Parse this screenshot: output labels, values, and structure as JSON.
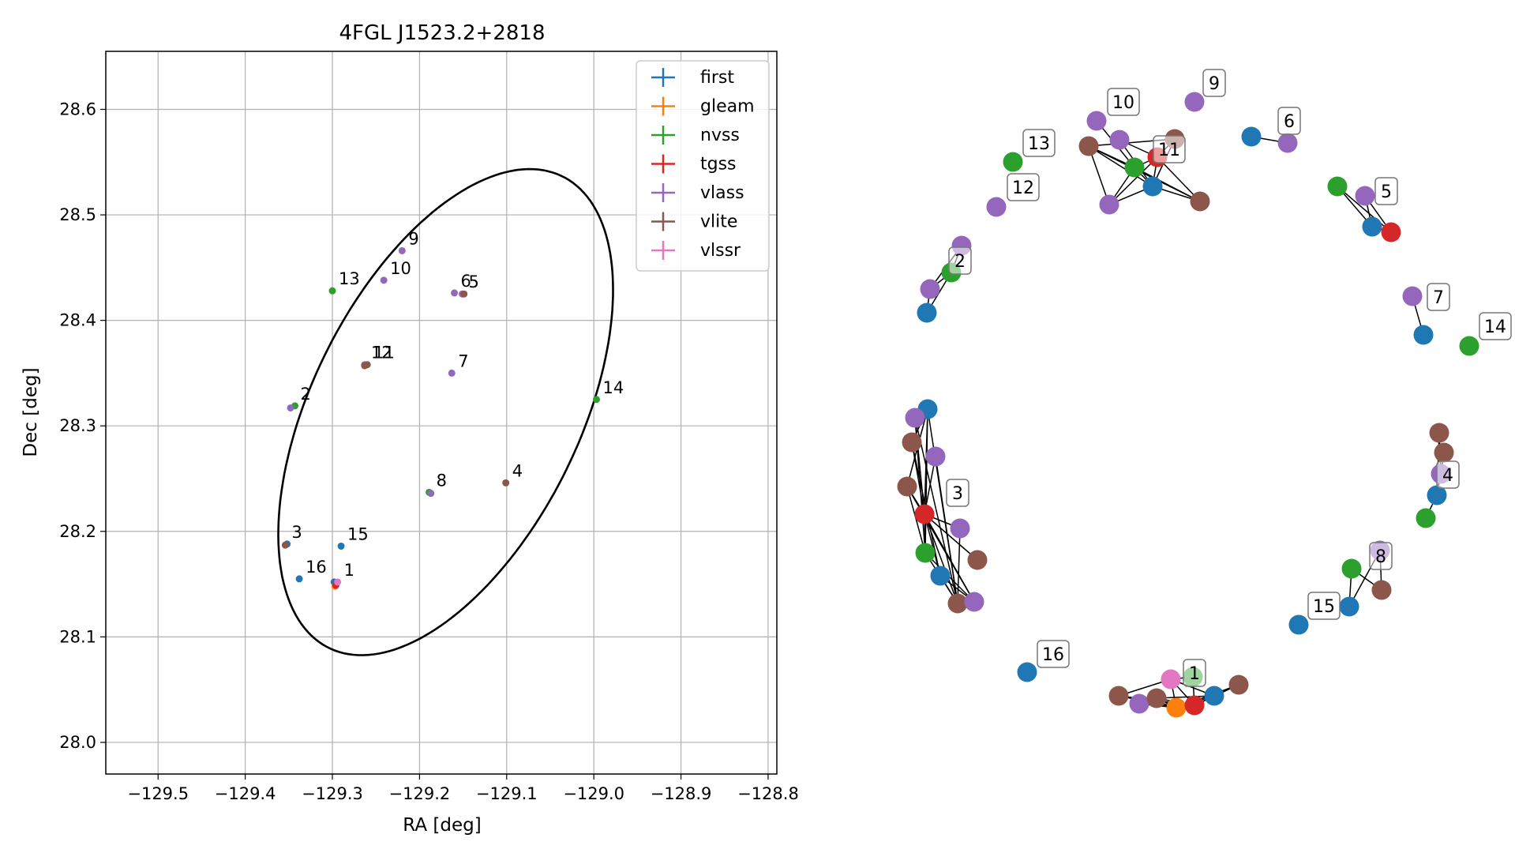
{
  "chart_data": [
    {
      "type": "scatter",
      "title": "4FGL J1523.2+2818",
      "xlabel": "RA [deg]",
      "ylabel": "Dec [deg]",
      "xlim": [
        -129.56,
        -128.79
      ],
      "ylim": [
        27.97,
        28.655
      ],
      "grid": true,
      "legend_position": "top-right",
      "xticks": [
        -129.5,
        -129.4,
        -129.3,
        -129.2,
        -129.1,
        -129.0,
        -128.9,
        -128.8
      ],
      "xtick_labels": [
        "−129.5",
        "−129.4",
        "−129.3",
        "−129.2",
        "−129.1",
        "−129.0",
        "−128.9",
        "−128.8"
      ],
      "yticks": [
        28.0,
        28.1,
        28.2,
        28.3,
        28.4,
        28.5,
        28.6
      ],
      "ytick_labels": [
        "28.0",
        "28.1",
        "28.2",
        "28.3",
        "28.4",
        "28.5",
        "28.6"
      ],
      "ellipse": {
        "center_x": -129.17,
        "center_y": 28.313,
        "semi_major": 0.262,
        "semi_minor": 0.146,
        "angle_deg": 55
      },
      "series": [
        {
          "name": "first",
          "color": "#1f77b4",
          "points": [
            [
              -129.298,
              28.152
            ],
            [
              -129.352,
              28.188
            ],
            [
              -129.29,
              28.186
            ],
            [
              -129.338,
              28.155
            ]
          ]
        },
        {
          "name": "gleam",
          "color": "#ff7f0e",
          "points": [
            [
              -129.297,
              28.148
            ]
          ]
        },
        {
          "name": "nvss",
          "color": "#2ca02c",
          "points": [
            [
              -129.343,
              28.319
            ],
            [
              -129.189,
              28.237
            ],
            [
              -129.3,
              28.428
            ],
            [
              -128.997,
              28.325
            ]
          ]
        },
        {
          "name": "tgss",
          "color": "#d62728",
          "points": [
            [
              -129.296,
              28.149
            ]
          ]
        },
        {
          "name": "vlass",
          "color": "#9467bd",
          "points": [
            [
              -129.348,
              28.317
            ],
            [
              -129.187,
              28.236
            ],
            [
              -129.163,
              28.35
            ],
            [
              -129.241,
              28.438
            ],
            [
              -129.22,
              28.466
            ],
            [
              -129.16,
              28.426
            ],
            [
              -129.151,
              28.425
            ],
            [
              -129.263,
              28.358
            ]
          ]
        },
        {
          "name": "vlite",
          "color": "#8c564b",
          "points": [
            [
              -129.354,
              28.187
            ],
            [
              -129.101,
              28.246
            ],
            [
              -129.26,
              28.358
            ],
            [
              -129.263,
              28.357
            ],
            [
              -129.149,
              28.425
            ]
          ]
        },
        {
          "name": "vlssr",
          "color": "#e377c2",
          "points": [
            [
              -129.294,
              28.152
            ]
          ]
        }
      ],
      "annotations": [
        {
          "text": "1",
          "x": -129.294,
          "y": 28.152
        },
        {
          "text": "2",
          "x": -129.344,
          "y": 28.319
        },
        {
          "text": "3",
          "x": -129.354,
          "y": 28.188
        },
        {
          "text": "4",
          "x": -129.101,
          "y": 28.246
        },
        {
          "text": "5",
          "x": -129.151,
          "y": 28.425
        },
        {
          "text": "6",
          "x": -129.16,
          "y": 28.426
        },
        {
          "text": "7",
          "x": -129.163,
          "y": 28.35
        },
        {
          "text": "8",
          "x": -129.188,
          "y": 28.237
        },
        {
          "text": "9",
          "x": -129.22,
          "y": 28.466
        },
        {
          "text": "10",
          "x": -129.241,
          "y": 28.438
        },
        {
          "text": "11",
          "x": -129.26,
          "y": 28.358
        },
        {
          "text": "12",
          "x": -129.263,
          "y": 28.358
        },
        {
          "text": "13",
          "x": -129.3,
          "y": 28.428
        },
        {
          "text": "14",
          "x": -128.997,
          "y": 28.325
        },
        {
          "text": "15",
          "x": -129.29,
          "y": 28.186
        },
        {
          "text": "16",
          "x": -129.338,
          "y": 28.155
        }
      ]
    },
    {
      "type": "network",
      "colors": {
        "first": "#1f77b4",
        "gleam": "#ff7f0e",
        "nvss": "#2ca02c",
        "tgss": "#d62728",
        "vlass": "#9467bd",
        "vlite": "#8c564b",
        "vlssr": "#e377c2"
      },
      "labels": [
        "1",
        "2",
        "3",
        "4",
        "5",
        "6",
        "7",
        "8",
        "9",
        "10",
        "11",
        "12",
        "13",
        "14",
        "15",
        "16"
      ]
    }
  ]
}
